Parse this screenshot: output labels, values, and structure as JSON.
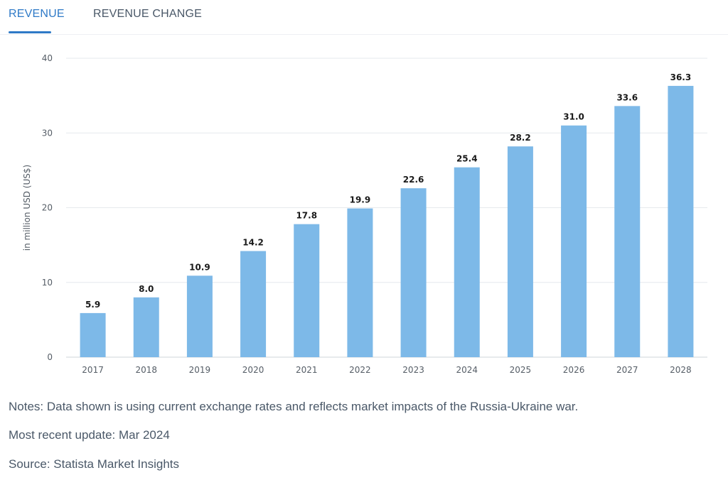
{
  "tabs": {
    "active_label": "REVENUE",
    "other_label": "REVENUE CHANGE"
  },
  "colors": {
    "bar": "#7db9e8",
    "accent": "#2f7ac7",
    "grid": "#e6e9ed"
  },
  "chart_data": {
    "type": "bar",
    "ylabel": "in million USD (US$)",
    "ylim": [
      0,
      40
    ],
    "yticks": [
      0,
      10,
      20,
      30,
      40
    ],
    "grid": true,
    "categories": [
      "2017",
      "2018",
      "2019",
      "2020",
      "2021",
      "2022",
      "2023",
      "2024",
      "2025",
      "2026",
      "2027",
      "2028"
    ],
    "values": [
      5.9,
      8.0,
      10.9,
      14.2,
      17.8,
      19.9,
      22.6,
      25.4,
      28.2,
      31.0,
      33.6,
      36.3
    ],
    "value_labels": [
      "5.9",
      "8.0",
      "10.9",
      "14.2",
      "17.8",
      "19.9",
      "22.6",
      "25.4",
      "28.2",
      "31.0",
      "33.6",
      "36.3"
    ]
  },
  "notes": {
    "line1": "Notes: Data shown is using current exchange rates and reflects market impacts of the Russia-Ukraine war.",
    "line2": "Most recent update: Mar 2024",
    "line3": "Source: Statista Market Insights"
  }
}
